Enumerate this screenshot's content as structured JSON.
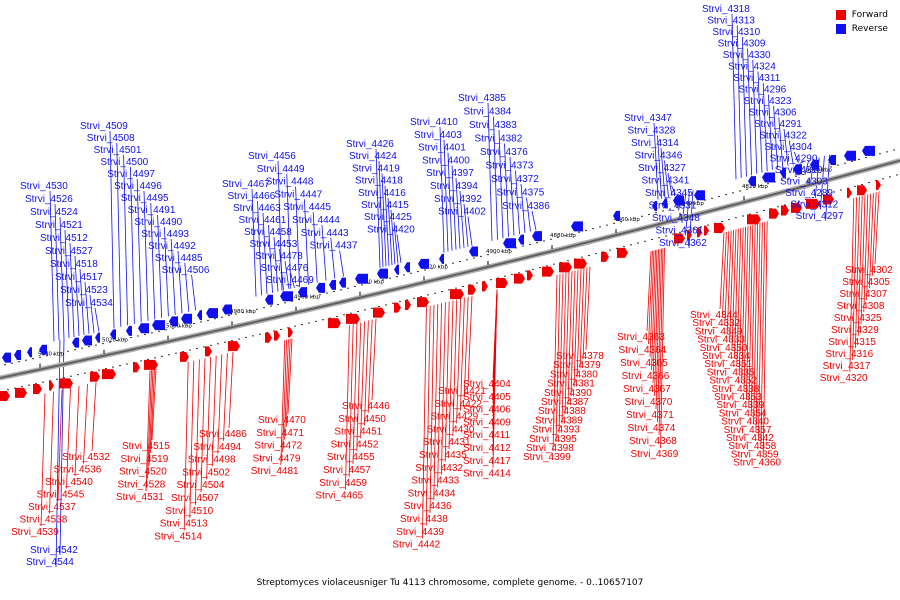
{
  "caption": "Streptomyces violaceusniger Tu 4113 chromosome, complete genome. - 0..10657107",
  "legend": [
    {
      "label": "Forward",
      "color": "#ee0000"
    },
    {
      "label": "Reverse",
      "color": "#1010ee"
    }
  ],
  "ticks": [
    "5040 kbp",
    "5020 kbp",
    "5000 kbp",
    "4980 kbp",
    "4960 kbp",
    "4940 kbp",
    "4920 kbp",
    "4900 kbp",
    "4880 kbp",
    "4860 kbp",
    "4840 kbp",
    "4820 kbp",
    "4800 kbp"
  ],
  "reverse_labels": [
    "Strvi_4318",
    "Strvi_4313",
    "Strvi_4310",
    "Strvi_4309",
    "Strvi_4330",
    "Strvi_4324",
    "Strvi_4311",
    "Strvi_4296",
    "Strvi_4323",
    "Strvi_4306",
    "Strvi_4291",
    "Strvi_4322",
    "Strvi_4304",
    "Strvi_4290",
    "Strvi_4319",
    "Strvi_4303",
    "Strvi_4289",
    "Strvi_4312",
    "Strvi_4297",
    "Strvi_4347",
    "Strvi_4328",
    "Strvi_4314",
    "Strvi_4346",
    "Strvi_4327",
    "Strvi_4341",
    "Strvi_4345",
    "Strvi_4331",
    "Strvi_4348",
    "Strvi_4361",
    "Strvi_4362",
    "Strvi_4385",
    "Strvi_4384",
    "Strvi_4383",
    "Strvi_4382",
    "Strvi_4376",
    "Strvi_4373",
    "Strvi_4372",
    "Strvi_4375",
    "Strvi_4386",
    "Strvi_4410",
    "Strvi_4403",
    "Strvi_4401",
    "Strvi_4400",
    "Strvi_4397",
    "Strvi_4394",
    "Strvi_4392",
    "Strvi_4402",
    "Strvi_4426",
    "Strvi_4424",
    "Strvi_4419",
    "Strvi_4418",
    "Strvi_4416",
    "Strvi_4415",
    "Strvi_4425",
    "Strvi_4420",
    "Strvi_4456",
    "Strvi_4449",
    "Strvi_4448",
    "Strvi_4447",
    "Strvi_4445",
    "Strvi_4444",
    "Strvi_4443",
    "Strvi_4437",
    "Strvi_4467",
    "Strvi_4466",
    "Strvi_4463",
    "Strvi_4461",
    "Strvi_4458",
    "Strvi_4453",
    "Strvi_4478",
    "Strvi_4476",
    "Strvi_4469",
    "Strvi_4509",
    "Strvi_4508",
    "Strvi_4501",
    "Strvi_4500",
    "Strvi_4497",
    "Strvi_4496",
    "Strvi_4495",
    "Strvi_4491",
    "Strvi_4490",
    "Strvi_4493",
    "Strvi_4492",
    "Strvi_4485",
    "Strvi_4506",
    "Strvi_4530",
    "Strvi_4526",
    "Strvi_4524",
    "Strvi_4521",
    "Strvi_4512",
    "Strvi_4527",
    "Strvi_4518",
    "Strvi_4517",
    "Strvi_4523",
    "Strvi_4534",
    "Strvi_4542",
    "Strvi_4544"
  ],
  "forward_labels": [
    "Strvi_4302",
    "Strvi_4305",
    "Strvi_4307",
    "Strvi_4308",
    "Strvi_4325",
    "Strvi_4329",
    "Strvi_4315",
    "Strvi_4316",
    "Strvi_4317",
    "Strvi_4320",
    "Strvi_4344",
    "Strvi_4332",
    "Strvi_4349",
    "Strvi_4333",
    "Strvi_4350",
    "Strvi_4334",
    "Strvi_4351",
    "Strvi_4335",
    "Strvi_4352",
    "Strvi_4338",
    "Strvi_4353",
    "Strvi_4339",
    "Strvi_4354",
    "Strvi_4340",
    "Strvi_4357",
    "Strvi_4342",
    "Strvi_4358",
    "Strvi_4359",
    "Strvi_4360",
    "Strvi_4363",
    "Strvi_4364",
    "Strvi_4365",
    "Strvi_4366",
    "Strvi_4367",
    "Strvi_4370",
    "Strvi_4371",
    "Strvi_4374",
    "Strvi_4368",
    "Strvi_4369",
    "Strvi_4378",
    "Strvi_4379",
    "Strvi_4380",
    "Strvi_4381",
    "Strvi_4390",
    "Strvi_4387",
    "Strvi_4388",
    "Strvi_4389",
    "Strvi_4393",
    "Strvi_4395",
    "Strvi_4398",
    "Strvi_4399",
    "Strvi_4404",
    "Strvi_4405",
    "Strvi_4406",
    "Strvi_4409",
    "Strvi_4411",
    "Strvi_4412",
    "Strvi_4417",
    "Strvi_4414",
    "Strvi_4421",
    "Strvi_4422",
    "Strvi_4429",
    "Strvi_4430",
    "Strvi_4431",
    "Strvi_4435",
    "Strvi_4432",
    "Strvi_4433",
    "Strvi_4434",
    "Strvi_4436",
    "Strvi_4438",
    "Strvi_4439",
    "Strvi_4442",
    "Strvi_4446",
    "Strvi_4450",
    "Strvi_4451",
    "Strvi_4452",
    "Strvi_4455",
    "Strvi_4457",
    "Strvi_4459",
    "Strvi_4465",
    "Strvi_4470",
    "Strvi_4471",
    "Strvi_4472",
    "Strvi_4479",
    "Strvi_4481",
    "Strvi_4486",
    "Strvi_4494",
    "Strvi_4498",
    "Strvi_4502",
    "Strvi_4504",
    "Strvi_4507",
    "Strvi_4510",
    "Strvi_4513",
    "Strvi_4514",
    "Strvi_4515",
    "Strvi_4519",
    "Strvi_4520",
    "Strvi_4528",
    "Strvi_4531",
    "Strvi_4532",
    "Strvi_4536",
    "Strvi_4540",
    "Strvi_4545",
    "Strvi_4537",
    "Strvi_4538",
    "Strvi_4539"
  ]
}
